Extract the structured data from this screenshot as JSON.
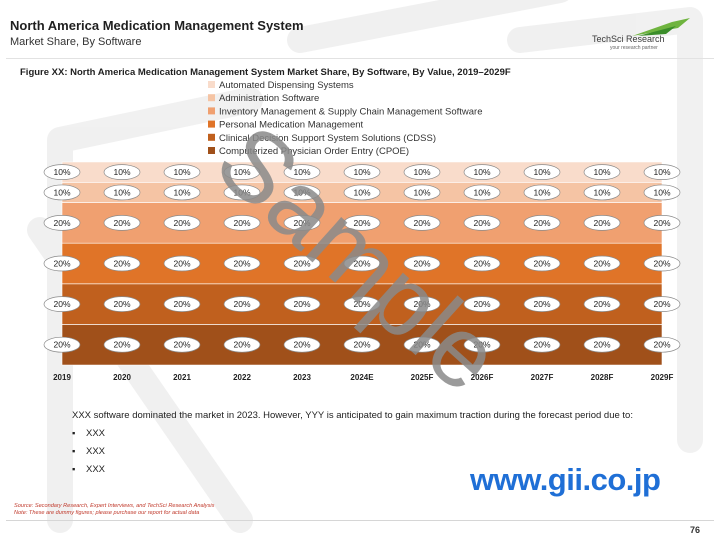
{
  "header": {
    "title": "North America Medication Management System",
    "subtitle": "Market Share, By Software"
  },
  "logo": {
    "name": "TechSci Research",
    "tagline": "your research partner"
  },
  "figure_title": "Figure XX: North America Medication Management System Market Share, By Software, By Value, 2019–2029F",
  "chart_data": {
    "type": "area",
    "stacked": true,
    "percent": true,
    "x": [
      "2019",
      "2020",
      "2021",
      "2022",
      "2023",
      "2024E",
      "2025F",
      "2026F",
      "2027F",
      "2028F",
      "2029F"
    ],
    "series": [
      {
        "name": "Computerized Physician Order Entry (CPOE)",
        "color": "#a0501a",
        "values": [
          20,
          20,
          20,
          20,
          20,
          20,
          20,
          20,
          20,
          20,
          20
        ]
      },
      {
        "name": "Clinical Decision Support System Solutions (CDSS)",
        "color": "#c0601e",
        "values": [
          20,
          20,
          20,
          20,
          20,
          20,
          20,
          20,
          20,
          20,
          20
        ]
      },
      {
        "name": "Personal Medication Management",
        "color": "#e07428",
        "values": [
          20,
          20,
          20,
          20,
          20,
          20,
          20,
          20,
          20,
          20,
          20
        ]
      },
      {
        "name": "Inventory Management & Supply Chain Management Software",
        "color": "#f0a070",
        "values": [
          20,
          20,
          20,
          20,
          20,
          20,
          20,
          20,
          20,
          20,
          20
        ]
      },
      {
        "name": "Administration Software",
        "color": "#f5c4a4",
        "values": [
          10,
          10,
          10,
          10,
          10,
          10,
          10,
          10,
          10,
          10,
          10
        ]
      },
      {
        "name": "Automated Dispensing Systems",
        "color": "#f9dccb",
        "values": [
          10,
          10,
          10,
          10,
          10,
          10,
          10,
          10,
          10,
          10,
          10
        ]
      }
    ],
    "legend_order": [
      "Automated Dispensing Systems",
      "Administration Software",
      "Inventory Management & Supply Chain Management Software",
      "Personal Medication Management",
      "Clinical Decision Support System Solutions (CDSS)",
      "Computerized Physician Order Entry (CPOE)"
    ],
    "legend_position": "top",
    "label_suffix": "%",
    "ylim": [
      0,
      100
    ]
  },
  "commentary": {
    "text": "XXX software dominated the market in 2023. However, YYY is anticipated to gain maximum traction during the forecast period due to:",
    "bullets": [
      "XXX",
      "XXX",
      "XXX"
    ],
    "bullet_symbol": "▪"
  },
  "watermark": {
    "sample_text": "Sample",
    "url": "www.gii.co.jp"
  },
  "notes": {
    "source": "Source: Secondary Research, Expert Interviews, and TechSci Research Analysis",
    "note": "Note: These are dummy figures; please purchase our report for actual data"
  },
  "page_number": "76"
}
